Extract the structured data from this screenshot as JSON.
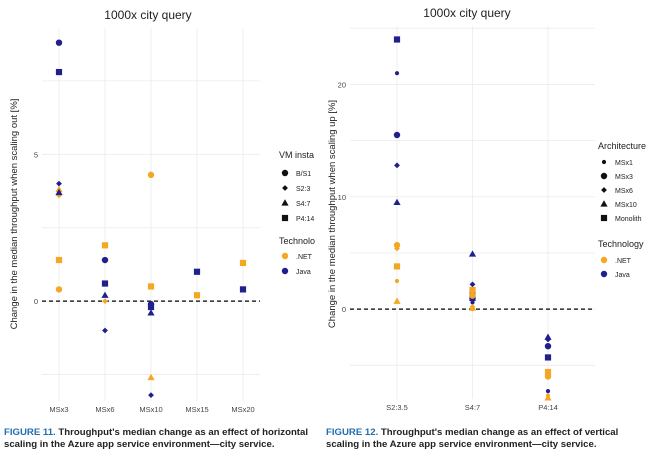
{
  "figures": [
    {
      "caption_label": "FIGURE 11.",
      "caption_text": "Throughput's median change as an effect of horizontal scaling in the Azure app service environment—city service."
    },
    {
      "caption_label": "FIGURE 12.",
      "caption_text": "Throughput's median change as an effect of vertical scaling in the Azure app service environment—city service."
    }
  ],
  "colors": {
    "net": "#f5a623",
    "java": "#1f1f8f",
    "grid": "#ebebeb",
    "zero_line": "#000000"
  },
  "chart_data": [
    {
      "type": "scatter",
      "title": "1000x city query",
      "xlabel": "",
      "ylabel": "Change in the median throughput when scaling out [%]",
      "categories": [
        "MSx3",
        "MSx6",
        "MSx10",
        "MSx15",
        "MSx20"
      ],
      "y_ticks": [
        "0",
        "5"
      ],
      "ylim": [
        -3.4,
        9.3
      ],
      "grid": true,
      "reference_line": 0,
      "legend": {
        "placement": "right",
        "shape_title": "VM insta",
        "shape_items": [
          {
            "label": "B/S1",
            "shape": "circle"
          },
          {
            "label": "S2:3",
            "shape": "diamond"
          },
          {
            "label": "S4:7",
            "shape": "triangle"
          },
          {
            "label": "P4:14",
            "shape": "square"
          }
        ],
        "color_title": "Technolo",
        "color_items": [
          {
            "label": ".NET",
            "color": "#f5a623"
          },
          {
            "label": "Java",
            "color": "#1f1f8f"
          }
        ]
      },
      "series": [
        {
          "tech": ".NET",
          "shape": "circle",
          "points": [
            [
              "MSx3",
              0.4
            ],
            [
              "MSx10",
              4.3
            ]
          ]
        },
        {
          "tech": ".NET",
          "shape": "diamond",
          "points": [
            [
              "MSx3",
              3.6
            ],
            [
              "MSx6",
              0.0
            ]
          ]
        },
        {
          "tech": ".NET",
          "shape": "triangle",
          "points": [
            [
              "MSx3",
              3.8
            ],
            [
              "MSx10",
              -2.6
            ]
          ]
        },
        {
          "tech": ".NET",
          "shape": "square",
          "points": [
            [
              "MSx3",
              1.4
            ],
            [
              "MSx6",
              1.9
            ],
            [
              "MSx10",
              0.5
            ],
            [
              "MSx15",
              0.2
            ],
            [
              "MSx20",
              1.3
            ]
          ]
        },
        {
          "tech": "Java",
          "shape": "circle",
          "points": [
            [
              "MSx3",
              8.8
            ],
            [
              "MSx6",
              1.4
            ],
            [
              "MSx10",
              -0.1
            ]
          ]
        },
        {
          "tech": "Java",
          "shape": "diamond",
          "points": [
            [
              "MSx3",
              4.0
            ],
            [
              "MSx6",
              -1.0
            ],
            [
              "MSx10",
              -3.2
            ]
          ]
        },
        {
          "tech": "Java",
          "shape": "triangle",
          "points": [
            [
              "MSx3",
              3.7
            ],
            [
              "MSx6",
              0.2
            ],
            [
              "MSx10",
              -0.4
            ]
          ]
        },
        {
          "tech": "Java",
          "shape": "square",
          "points": [
            [
              "MSx3",
              7.8
            ],
            [
              "MSx6",
              0.6
            ],
            [
              "MSx10",
              -0.2
            ],
            [
              "MSx15",
              1.0
            ],
            [
              "MSx20",
              0.4
            ]
          ]
        }
      ]
    },
    {
      "type": "scatter",
      "title": "1000x city query",
      "xlabel": "",
      "ylabel": "Change in the median throughput when scaling up [%]",
      "categories": [
        "S2:3.5",
        "S4:7",
        "P4:14"
      ],
      "y_ticks": [
        "0",
        "10",
        "20"
      ],
      "ylim": [
        -8.0,
        25.2
      ],
      "grid": true,
      "reference_line": 0,
      "legend": {
        "placement": "right",
        "shape_title": "Architecture",
        "shape_items": [
          {
            "label": "MSx1",
            "shape": "circle-small"
          },
          {
            "label": "MSx3",
            "shape": "circle"
          },
          {
            "label": "MSx6",
            "shape": "diamond"
          },
          {
            "label": "MSx10",
            "shape": "triangle"
          },
          {
            "label": "Monolith",
            "shape": "square"
          }
        ],
        "color_title": "Technology",
        "color_items": [
          {
            "label": ".NET",
            "color": "#f5a623"
          },
          {
            "label": "Java",
            "color": "#1f1f8f"
          }
        ]
      },
      "series": [
        {
          "tech": "Java",
          "shape": "square",
          "points": [
            [
              "S2:3.5",
              24.0
            ],
            [
              "S4:7",
              1.0
            ],
            [
              "P4:14",
              -4.3
            ]
          ]
        },
        {
          "tech": "Java",
          "shape": "circle-small",
          "points": [
            [
              "S2:3.5",
              21.0
            ],
            [
              "S4:7",
              0.6
            ],
            [
              "P4:14",
              -7.3
            ]
          ]
        },
        {
          "tech": "Java",
          "shape": "circle",
          "points": [
            [
              "S2:3.5",
              15.5
            ],
            [
              "S4:7",
              1.5
            ],
            [
              "P4:14",
              -3.3
            ]
          ]
        },
        {
          "tech": "Java",
          "shape": "diamond",
          "points": [
            [
              "S2:3.5",
              12.8
            ],
            [
              "S4:7",
              2.2
            ],
            [
              "P4:14",
              -2.7
            ]
          ]
        },
        {
          "tech": "Java",
          "shape": "triangle",
          "points": [
            [
              "S2:3.5",
              9.5
            ],
            [
              "S4:7",
              4.9
            ],
            [
              "P4:14",
              -2.5
            ]
          ]
        },
        {
          "tech": ".NET",
          "shape": "square",
          "points": [
            [
              "S2:3.5",
              3.8
            ],
            [
              "S4:7",
              1.7
            ],
            [
              "P4:14",
              -5.6
            ]
          ]
        },
        {
          "tech": ".NET",
          "shape": "circle",
          "points": [
            [
              "S2:3.5",
              5.7
            ],
            [
              "S4:7",
              1.2
            ],
            [
              "P4:14",
              -6.0
            ]
          ]
        },
        {
          "tech": ".NET",
          "shape": "diamond",
          "points": [
            [
              "S2:3.5",
              5.4
            ],
            [
              "S4:7",
              0.2
            ],
            [
              "P4:14",
              -5.8
            ]
          ]
        },
        {
          "tech": ".NET",
          "shape": "circle-small",
          "points": [
            [
              "S2:3.5",
              2.5
            ],
            [
              "S4:7",
              0.0
            ],
            [
              "P4:14",
              -7.7
            ]
          ]
        },
        {
          "tech": ".NET",
          "shape": "triangle",
          "points": [
            [
              "S2:3.5",
              0.7
            ],
            [
              "S4:7",
              0.1
            ],
            [
              "P4:14",
              -7.9
            ]
          ]
        }
      ]
    }
  ]
}
